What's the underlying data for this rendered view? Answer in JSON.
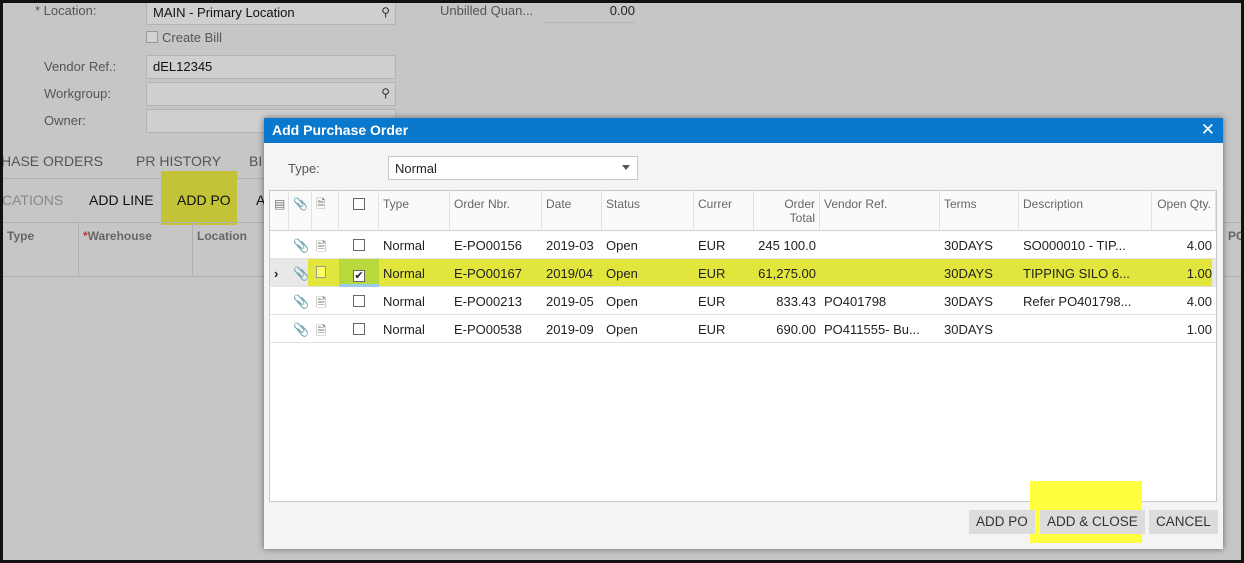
{
  "form": {
    "location_label": "* Location:",
    "location_value": "MAIN - Primary Location",
    "create_bill_label": "Create Bill",
    "vendor_ref_label": "Vendor Ref.:",
    "vendor_ref_value": "dEL12345",
    "workgroup_label": "Workgroup:",
    "workgroup_value": "",
    "owner_label": "Owner:",
    "unbilled_label": "Unbilled Quan...",
    "unbilled_value": "0.00"
  },
  "tabs": [
    "HASE ORDERS",
    "PR HISTORY",
    "BI"
  ],
  "toolbar": {
    "cut_label": "CATIONS",
    "add_line": "ADD LINE",
    "add_po": "ADD PO",
    "more": "A"
  },
  "bg_grid": {
    "headers": [
      "Type",
      "Warehouse",
      "Location"
    ],
    "right_header": "PO"
  },
  "dialog": {
    "title": "Add Purchase Order",
    "type_label": "Type:",
    "type_value": "Normal",
    "columns": [
      "Type",
      "Order Nbr.",
      "Date",
      "Status",
      "Currer",
      "Order Total",
      "Vendor Ref.",
      "Terms",
      "Description",
      "Open Qty."
    ],
    "rows": [
      {
        "checked": false,
        "selected": false,
        "type": "Normal",
        "order": "E-PO00156",
        "date": "2019-03",
        "status": "Open",
        "currency": "EUR",
        "total": "245 100.0",
        "vendor_ref": "",
        "terms": "30DAYS",
        "description": "SO000010 - TIP...",
        "qty": "4.00"
      },
      {
        "checked": true,
        "selected": true,
        "type": "Normal",
        "order": "E-PO00167",
        "date": "2019/04",
        "status": "Open",
        "currency": "EUR",
        "total": "61,275.00",
        "vendor_ref": "",
        "terms": "30DAYS",
        "description": "TIPPING SILO 6...",
        "qty": "1.00"
      },
      {
        "checked": false,
        "selected": false,
        "type": "Normal",
        "order": "E-PO00213",
        "date": "2019-05",
        "status": "Open",
        "currency": "EUR",
        "total": "833.43",
        "vendor_ref": "PO401798",
        "terms": "30DAYS",
        "description": "Refer PO401798...",
        "qty": "4.00"
      },
      {
        "checked": false,
        "selected": false,
        "type": "Normal",
        "order": "E-PO00538",
        "date": "2019-09",
        "status": "Open",
        "currency": "EUR",
        "total": "690.00",
        "vendor_ref": "PO411555- Bu...",
        "terms": "30DAYS",
        "description": "",
        "qty": "1.00"
      }
    ],
    "buttons": {
      "add_po": "ADD PO",
      "add_close": "ADD & CLOSE",
      "cancel": "CANCEL"
    }
  },
  "colors": {
    "header": "#0a78cc",
    "highlight": "#e2e63c",
    "annotation": "#ffff40"
  }
}
